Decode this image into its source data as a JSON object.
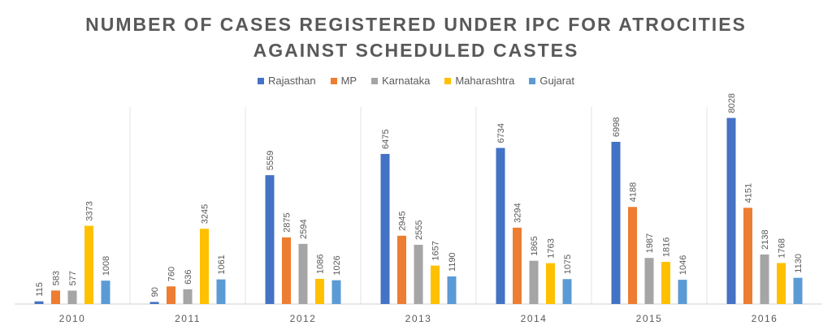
{
  "chart_data": {
    "type": "bar",
    "title_lines": [
      "NUMBER OF CASES REGISTERED UNDER IPC FOR ATROCITIES",
      "AGAINST SCHEDULED CASTES"
    ],
    "categories": [
      "2010",
      "2011",
      "2012",
      "2013",
      "2014",
      "2015",
      "2016"
    ],
    "series": [
      {
        "name": "Rajasthan",
        "color": "#4472C4",
        "values": [
          115,
          90,
          5559,
          6475,
          6734,
          6998,
          8028
        ]
      },
      {
        "name": "MP",
        "color": "#ED7D31",
        "values": [
          583,
          760,
          2875,
          2945,
          3294,
          4188,
          4151
        ]
      },
      {
        "name": "Karnataka",
        "color": "#A5A5A5",
        "values": [
          577,
          636,
          2594,
          2555,
          1865,
          1987,
          2138
        ]
      },
      {
        "name": "Maharashtra",
        "color": "#FFC000",
        "values": [
          3373,
          3245,
          1086,
          1657,
          1763,
          1816,
          1768
        ]
      },
      {
        "name": "Gujarat",
        "color": "#5B9BD5",
        "values": [
          1008,
          1061,
          1026,
          1190,
          1075,
          1046,
          1130
        ]
      }
    ],
    "ylim": [
      0,
      8500
    ],
    "legend_position": "top",
    "grid": false
  }
}
